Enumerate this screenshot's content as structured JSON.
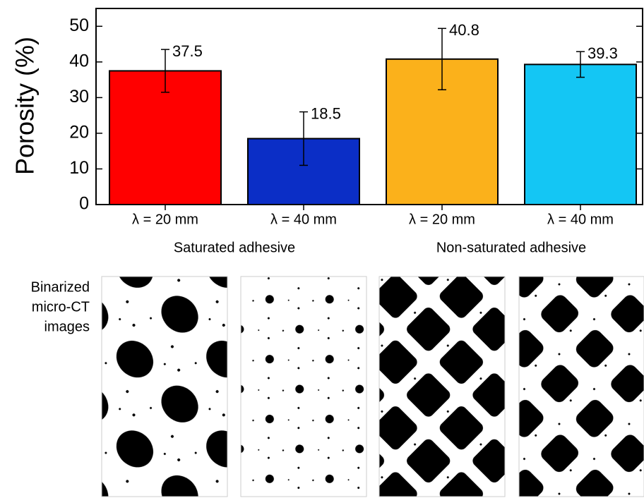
{
  "chart_data": {
    "type": "bar",
    "ylabel": "Porosity (%)",
    "categories": [
      "λ = 20 mm",
      "λ = 40 mm",
      "λ = 20 mm",
      "λ = 40 mm"
    ],
    "values": [
      37.5,
      18.5,
      40.8,
      39.3
    ],
    "errors": [
      6,
      7.5,
      8.6,
      3.6
    ],
    "colors": [
      "#ff0000",
      "#0b2ec6",
      "#fbb11b",
      "#14c6f4"
    ],
    "groups": [
      "Saturated adhesive",
      "Non-saturated adhesive"
    ],
    "ylim": [
      0,
      55
    ],
    "yticks": [
      0,
      10,
      20,
      30,
      40,
      50
    ]
  },
  "figure_caption": [
    "Binarized",
    "micro-CT",
    "images"
  ]
}
